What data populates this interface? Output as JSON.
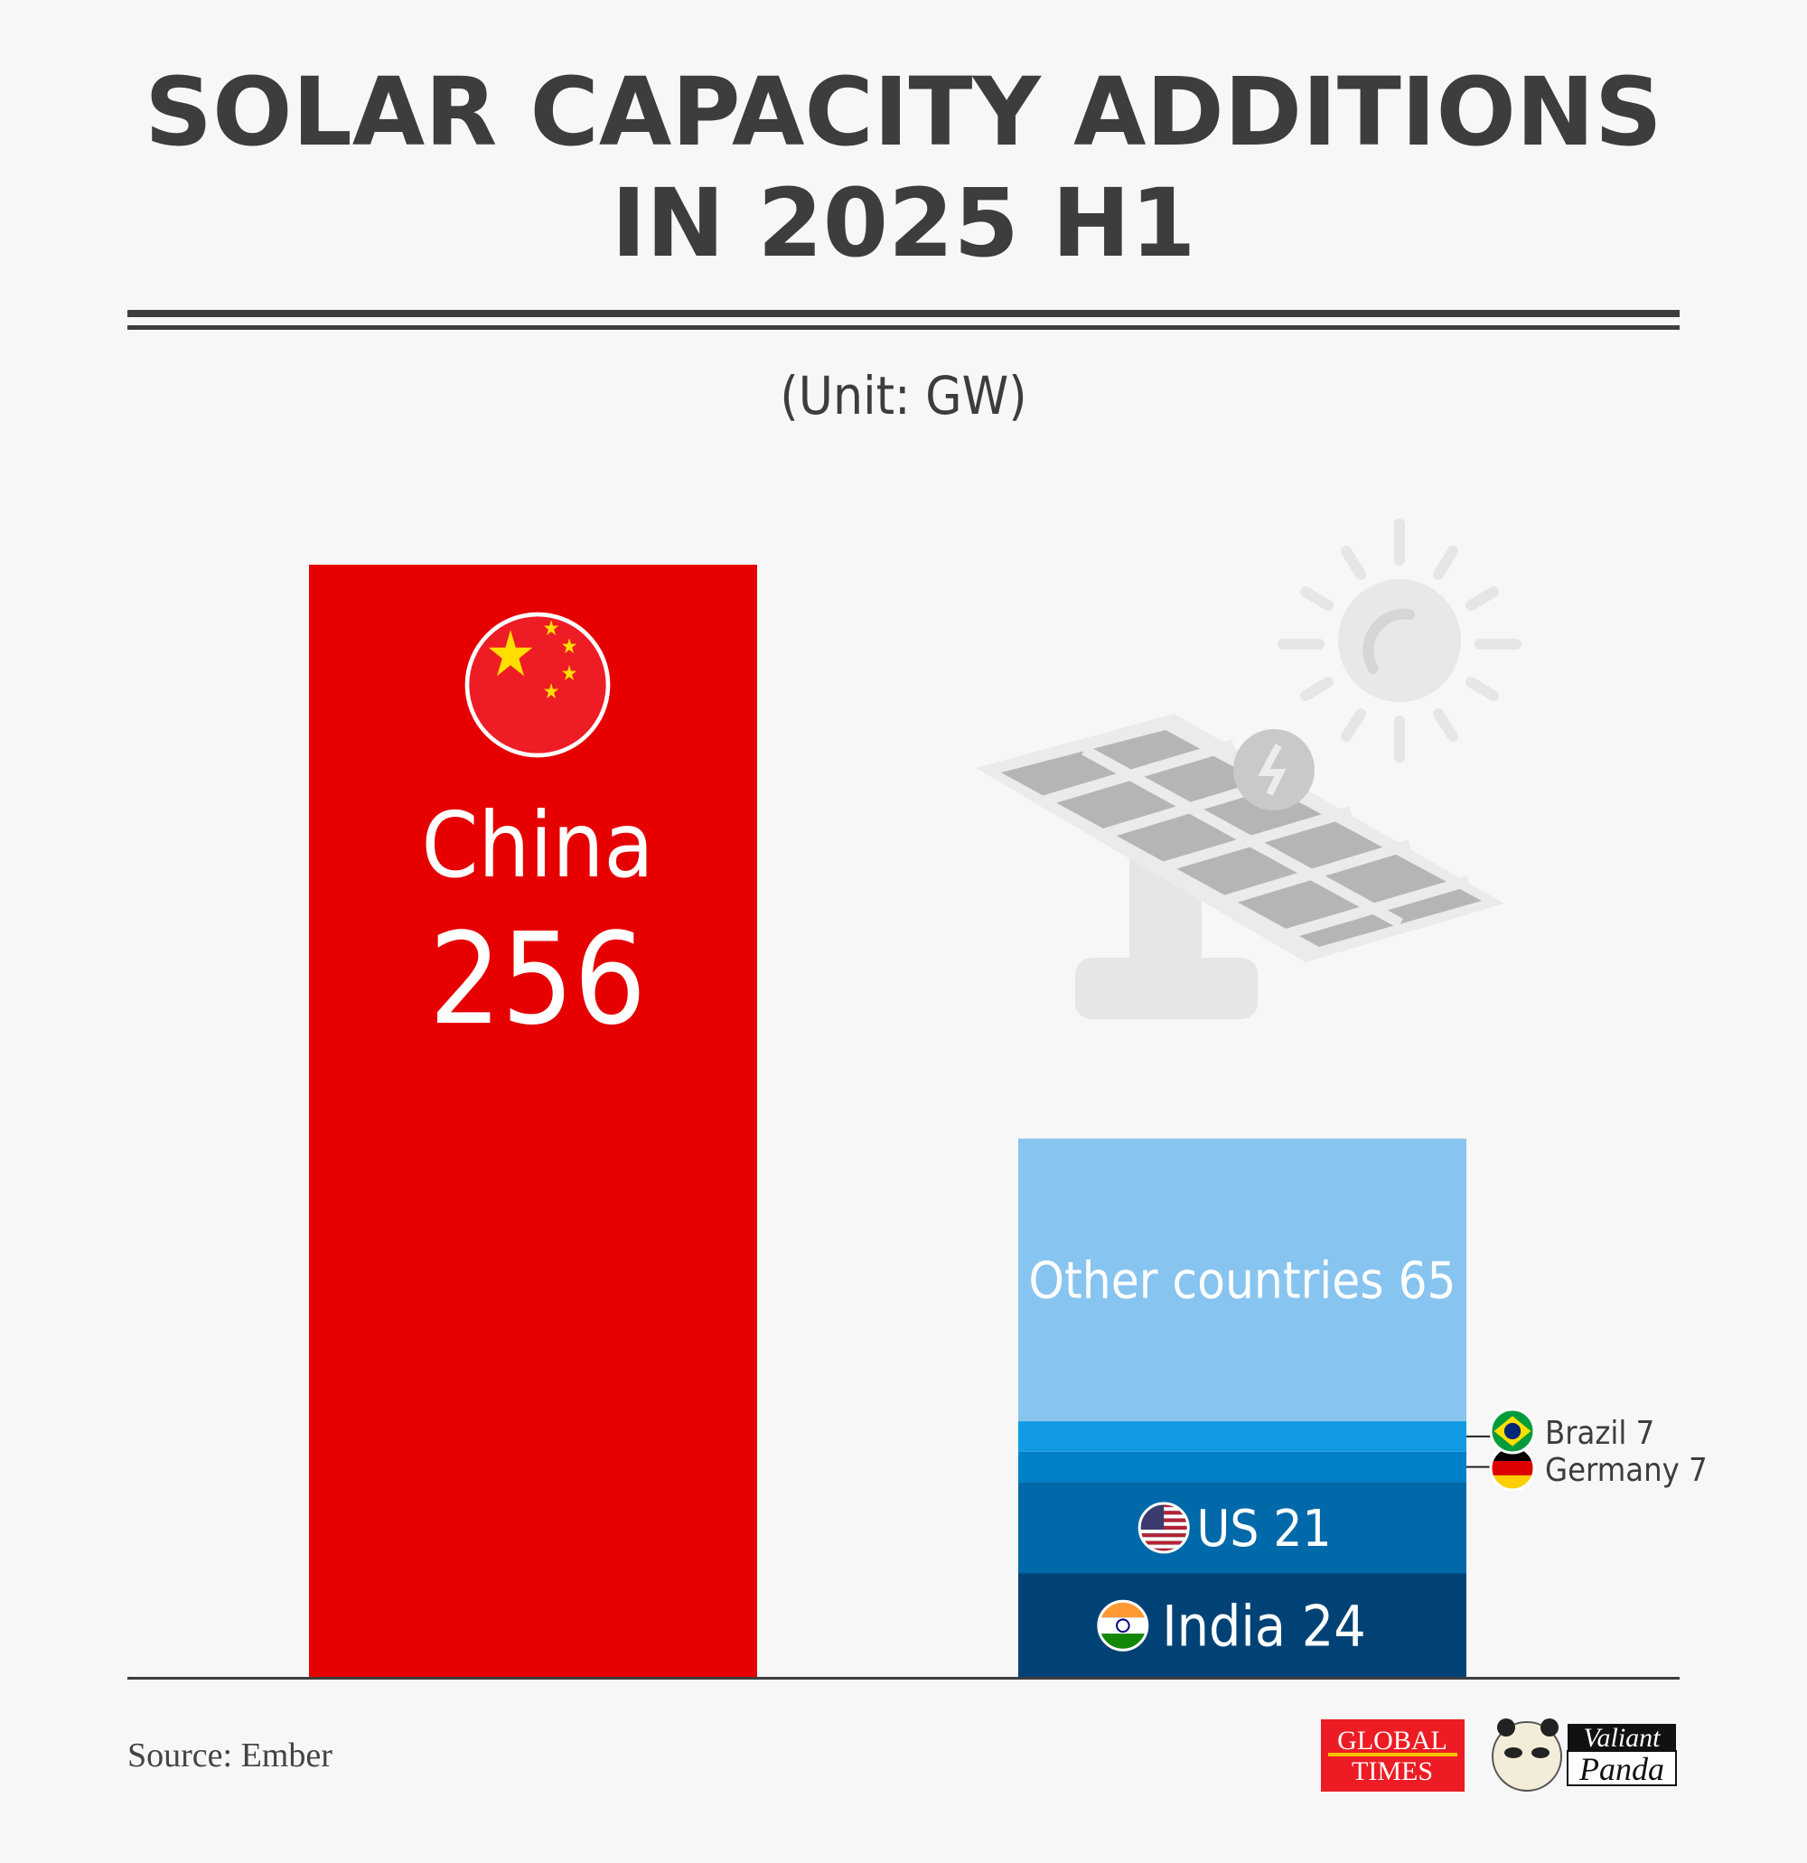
{
  "chart_data": {
    "type": "bar",
    "title_lines": [
      "SOLAR CAPACITY ADDITIONS",
      "IN 2025 H1"
    ],
    "unit_label": "(Unit: GW)",
    "ylim": [
      0,
      256
    ],
    "grid": false,
    "bars": [
      {
        "category": "China",
        "value": 256,
        "color": "#e60000",
        "flag": "china-flag"
      },
      {
        "category": "Others",
        "stacked": true,
        "segments": [
          {
            "name": "India",
            "value": 24,
            "color": "#004276",
            "label": "India 24",
            "flag": "india-flag"
          },
          {
            "name": "US",
            "value": 21,
            "color": "#0069aa",
            "label": "US 21",
            "flag": "us-flag"
          },
          {
            "name": "Germany",
            "value": 7,
            "color": "#0080c8",
            "label": "Germany 7",
            "flag": "germany-flag"
          },
          {
            "name": "Brazil",
            "value": 7,
            "color": "#129be2",
            "label": "Brazil 7",
            "flag": "brazil-flag"
          },
          {
            "name": "Other countries",
            "value": 65,
            "color": "#88c4f0",
            "label": "Other countries 65"
          }
        ]
      }
    ]
  },
  "footer": {
    "source": "Source: Ember",
    "logos": [
      "GLOBAL TIMES",
      "Valiant Panda"
    ]
  },
  "icons": [
    "solar-panel-icon",
    "sun-icon"
  ]
}
